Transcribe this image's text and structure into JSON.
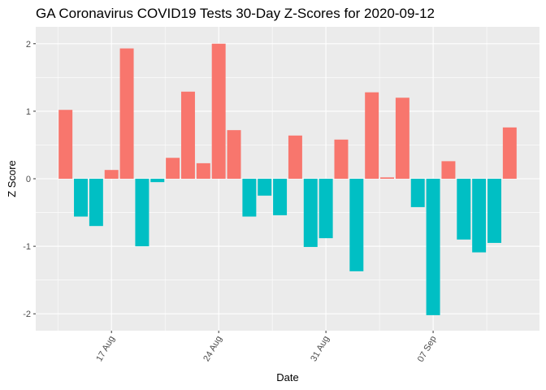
{
  "chart_data": {
    "type": "bar",
    "title": "GA Coronavirus COVID19 Tests 30-Day Z-Scores for 2020-09-12",
    "xlabel": "Date",
    "ylabel": "Z Score",
    "x": [
      "2020-08-14",
      "2020-08-15",
      "2020-08-16",
      "2020-08-17",
      "2020-08-18",
      "2020-08-19",
      "2020-08-20",
      "2020-08-21",
      "2020-08-22",
      "2020-08-23",
      "2020-08-24",
      "2020-08-25",
      "2020-08-26",
      "2020-08-27",
      "2020-08-28",
      "2020-08-29",
      "2020-08-30",
      "2020-08-31",
      "2020-09-01",
      "2020-09-02",
      "2020-09-03",
      "2020-09-04",
      "2020-09-05",
      "2020-09-06",
      "2020-09-07",
      "2020-09-08",
      "2020-09-09",
      "2020-09-10",
      "2020-09-11",
      "2020-09-12"
    ],
    "values": [
      1.02,
      -0.56,
      -0.7,
      0.13,
      1.93,
      -1.0,
      -0.05,
      0.31,
      1.29,
      0.23,
      2.0,
      0.72,
      -0.56,
      -0.25,
      -0.54,
      0.64,
      -1.01,
      -0.88,
      0.58,
      -1.37,
      1.28,
      0.02,
      1.2,
      -0.42,
      -2.02,
      0.26,
      -0.9,
      -1.09,
      -0.95,
      0.76
    ],
    "x_ticks": [
      {
        "date": "2020-08-17",
        "label": "17 Aug"
      },
      {
        "date": "2020-08-24",
        "label": "24 Aug"
      },
      {
        "date": "2020-08-31",
        "label": "31 Aug"
      },
      {
        "date": "2020-09-07",
        "label": "07 Sep"
      }
    ],
    "y_ticks": [
      -2,
      -1,
      0,
      1,
      2
    ],
    "ylim": [
      -2.25,
      2.25
    ],
    "colors": {
      "positive": "#F8766D",
      "negative": "#00BFC4",
      "panel": "#EBEBEB",
      "grid": "#FFFFFF"
    },
    "grid": true,
    "legend": "none"
  }
}
